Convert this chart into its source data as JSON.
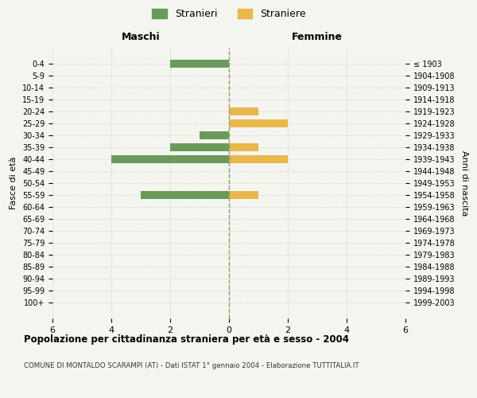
{
  "age_groups": [
    "0-4",
    "5-9",
    "10-14",
    "15-19",
    "20-24",
    "25-29",
    "30-34",
    "35-39",
    "40-44",
    "45-49",
    "50-54",
    "55-59",
    "60-64",
    "65-69",
    "70-74",
    "75-79",
    "80-84",
    "85-89",
    "90-94",
    "95-99",
    "100+"
  ],
  "birth_years": [
    "1999-2003",
    "1994-1998",
    "1989-1993",
    "1984-1988",
    "1979-1983",
    "1974-1978",
    "1969-1973",
    "1964-1968",
    "1959-1963",
    "1954-1958",
    "1949-1953",
    "1944-1948",
    "1939-1943",
    "1934-1938",
    "1929-1933",
    "1924-1928",
    "1919-1923",
    "1914-1918",
    "1909-1913",
    "1904-1908",
    "≤ 1903"
  ],
  "maschi_values": [
    2,
    0,
    0,
    0,
    0,
    0,
    1,
    2,
    4,
    0,
    0,
    3,
    0,
    0,
    0,
    0,
    0,
    0,
    0,
    0,
    0
  ],
  "femmine_values": [
    0,
    0,
    0,
    0,
    1,
    2,
    0,
    1,
    2,
    0,
    0,
    1,
    0,
    0,
    0,
    0,
    0,
    0,
    0,
    0,
    0
  ],
  "maschi_color": "#6a9a5b",
  "femmine_color": "#e8b84b",
  "background_color": "#f5f5f0",
  "title": "Popolazione per cittadinanza straniera per età e sesso - 2004",
  "subtitle": "COMUNE DI MONTALDO SCARAMPI (AT) - Dati ISTAT 1° gennaio 2004 - Elaborazione TUTTITALIA.IT",
  "ylabel_left": "Fasce di età",
  "ylabel_right": "Anni di nascita",
  "xlabel_left": "Maschi",
  "xlabel_right": "Femmine",
  "legend_maschi": "Stranieri",
  "legend_femmine": "Straniere",
  "xlim": 6,
  "grid_color": "#cccccc",
  "center_line_color": "#999966"
}
